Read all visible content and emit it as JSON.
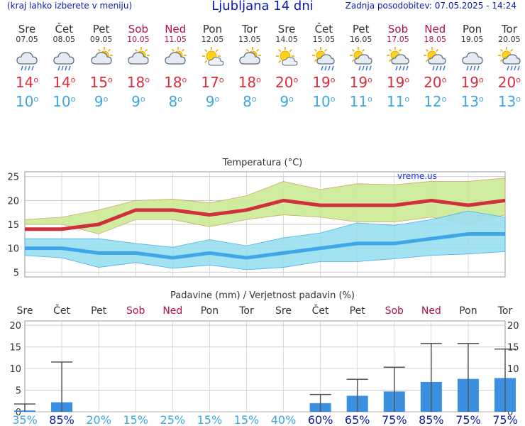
{
  "header": {
    "left_text": "(kraj lahko izberete v meniju)",
    "title": "Ljubljana 14 dni",
    "updated": "Zadnja posodobitev: 07.05.2025 - 14:24"
  },
  "days": [
    {
      "name": "Sre",
      "date": "07.05",
      "weekend": false,
      "icon": "rain-cloud-icon",
      "tmax": "14",
      "tmin": "10"
    },
    {
      "name": "Čet",
      "date": "08.05",
      "weekend": false,
      "icon": "rain-cloud-icon",
      "tmax": "14",
      "tmin": "10"
    },
    {
      "name": "Pet",
      "date": "09.05",
      "weekend": false,
      "icon": "partly-cloudy-icon",
      "tmax": "15",
      "tmin": "9"
    },
    {
      "name": "Sob",
      "date": "10.05",
      "weekend": true,
      "icon": "partly-cloudy-icon",
      "tmax": "18",
      "tmin": "9"
    },
    {
      "name": "Ned",
      "date": "11.05",
      "weekend": true,
      "icon": "partly-cloudy-icon",
      "tmax": "18",
      "tmin": "8"
    },
    {
      "name": "Pon",
      "date": "12.05",
      "weekend": false,
      "icon": "sun-cloud-icon",
      "tmax": "17",
      "tmin": "9"
    },
    {
      "name": "Tor",
      "date": "13.05",
      "weekend": false,
      "icon": "partly-cloudy-icon",
      "tmax": "18",
      "tmin": "8"
    },
    {
      "name": "Sre",
      "date": "14.05",
      "weekend": false,
      "icon": "sun-cloud-icon",
      "tmax": "20",
      "tmin": "9"
    },
    {
      "name": "Čet",
      "date": "15.05",
      "weekend": false,
      "icon": "sun-rain-icon",
      "tmax": "19",
      "tmin": "10"
    },
    {
      "name": "Pet",
      "date": "16.05",
      "weekend": false,
      "icon": "sun-rain-icon",
      "tmax": "19",
      "tmin": "11"
    },
    {
      "name": "Sob",
      "date": "17.05",
      "weekend": true,
      "icon": "sun-rain-icon",
      "tmax": "19",
      "tmin": "11"
    },
    {
      "name": "Ned",
      "date": "18.05",
      "weekend": true,
      "icon": "sun-rain-icon",
      "tmax": "20",
      "tmin": "12"
    },
    {
      "name": "Pon",
      "date": "19.05",
      "weekend": false,
      "icon": "rain-cloud-icon",
      "tmax": "19",
      "tmin": "13"
    },
    {
      "name": "Tor",
      "date": "20.05",
      "weekend": false,
      "icon": "sun-rain-icon",
      "tmax": "20",
      "tmin": "13"
    }
  ],
  "colors": {
    "max_line": "#d0303c",
    "min_line": "#3fa6ea",
    "max_band": "#ccea95",
    "min_band": "#9adff0",
    "bar": "#3b8fe0",
    "weekend": "#b0104a",
    "title": "#0b1aa8",
    "prob": "#3aa7e0",
    "prob_high": "#0b1aa8"
  },
  "chart_data": [
    {
      "type": "line",
      "title": "Temperatura (°C)",
      "watermark": "vreme.us",
      "ylim": [
        4,
        26
      ],
      "yticks": [
        5,
        10,
        15,
        20,
        25
      ],
      "grid": true,
      "series": [
        {
          "role": "max",
          "values": [
            14,
            14,
            15,
            18,
            18,
            17,
            18,
            20,
            19,
            19,
            19,
            20,
            19,
            20
          ],
          "band_low": [
            15,
            15,
            13,
            16,
            16,
            14.5,
            16,
            17,
            16.5,
            15.5,
            15.5,
            16.5,
            15,
            17
          ],
          "band_high": [
            16,
            16.5,
            18,
            20,
            20.3,
            19.5,
            21,
            24,
            22.3,
            23.5,
            23.3,
            24,
            24,
            24.7
          ]
        },
        {
          "role": "min",
          "values": [
            10,
            10,
            9,
            9,
            8,
            9,
            8,
            9,
            10,
            11,
            11,
            12,
            13,
            13
          ],
          "band_low": [
            8.5,
            8,
            6,
            7,
            5.8,
            6.5,
            5.5,
            6,
            7.2,
            7.2,
            7.8,
            8.5,
            8.8,
            9.3
          ],
          "band_high": [
            12,
            12,
            12,
            11,
            10.2,
            11.8,
            10.5,
            12.2,
            13.2,
            15.3,
            14.8,
            16,
            17.8,
            16.5
          ]
        }
      ]
    },
    {
      "type": "bar",
      "title": "Padavine (mm) / Verjetnost padavin (%)",
      "categories": [
        "Sre",
        "Čet",
        "Pet",
        "Sob",
        "Ned",
        "Pon",
        "Tor",
        "Sre",
        "Čet",
        "Pet",
        "Sob",
        "Ned",
        "Pon",
        "Tor"
      ],
      "weekend": [
        false,
        false,
        false,
        true,
        true,
        false,
        false,
        false,
        false,
        false,
        true,
        true,
        false,
        false
      ],
      "ylim": [
        0,
        21
      ],
      "yticks": [
        0,
        5,
        10,
        15,
        20
      ],
      "values": [
        0.3,
        2.2,
        0,
        0,
        0,
        0,
        0,
        0,
        2.0,
        3.7,
        4.7,
        6.9,
        7.6,
        7.8
      ],
      "err_high": [
        1.8,
        11.5,
        0,
        0,
        0,
        0,
        0,
        0,
        4.0,
        7.5,
        10.3,
        15.8,
        15.8,
        14.5
      ],
      "probability": [
        "35%",
        "85%",
        "20%",
        "15%",
        "25%",
        "15%",
        "15%",
        "40%",
        "60%",
        "65%",
        "75%",
        "85%",
        "75%",
        "75%"
      ]
    }
  ]
}
